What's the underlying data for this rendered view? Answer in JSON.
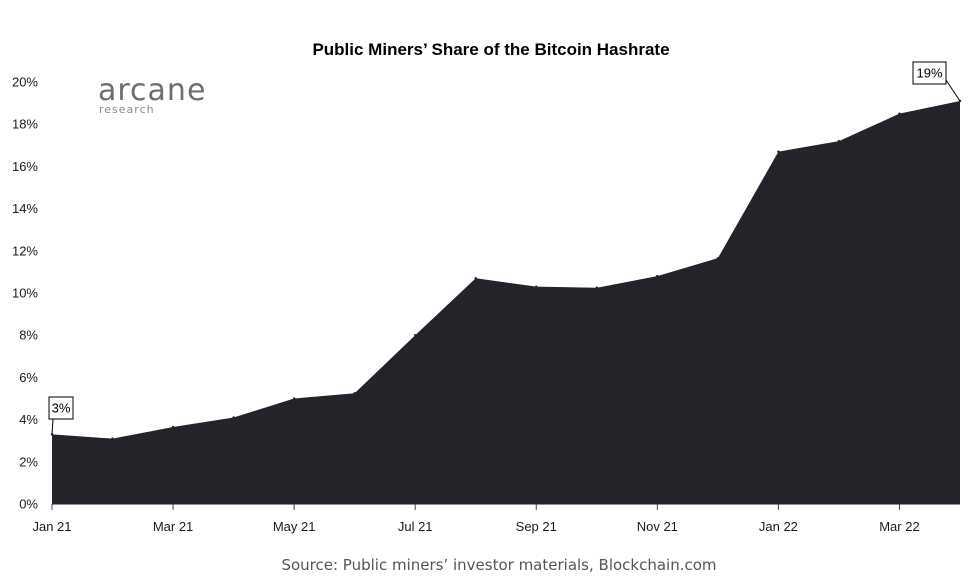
{
  "chart_data": {
    "type": "area",
    "title": "Public Miners’ Share of the Bitcoin Hashrate",
    "xlabel": "",
    "ylabel": "",
    "x": [
      "Jan 21",
      "Feb 21",
      "Mar 21",
      "Apr 21",
      "May 21",
      "Jun 21",
      "Jul 21",
      "Aug 21",
      "Sep 21",
      "Oct 21",
      "Nov 21",
      "Dec 21",
      "Jan 22",
      "Feb 22",
      "Mar 22",
      "Apr 22"
    ],
    "values": [
      3.3,
      3.1,
      3.65,
      4.1,
      5.0,
      5.25,
      8.0,
      10.7,
      10.3,
      10.25,
      10.8,
      11.65,
      16.7,
      17.2,
      18.5,
      19.1
    ],
    "x_tick_labels": [
      "Jan 21",
      "Mar 21",
      "May 21",
      "Jul 21",
      "Sep 21",
      "Nov 21",
      "Jan 22",
      "Mar 22"
    ],
    "y_tick_labels": [
      "0%",
      "2%",
      "4%",
      "6%",
      "8%",
      "10%",
      "12%",
      "14%",
      "16%",
      "18%",
      "20%"
    ],
    "ylim": [
      0,
      20
    ],
    "grid": false,
    "fill_color": "#222429",
    "annotations": [
      {
        "text": "3%",
        "point_index": 0
      },
      {
        "text": "19%",
        "point_index": 15
      }
    ]
  },
  "logo": {
    "name": "arcane",
    "subtitle": "research"
  },
  "source": "Source: Public miners’ investor materials, Blockchain.com"
}
